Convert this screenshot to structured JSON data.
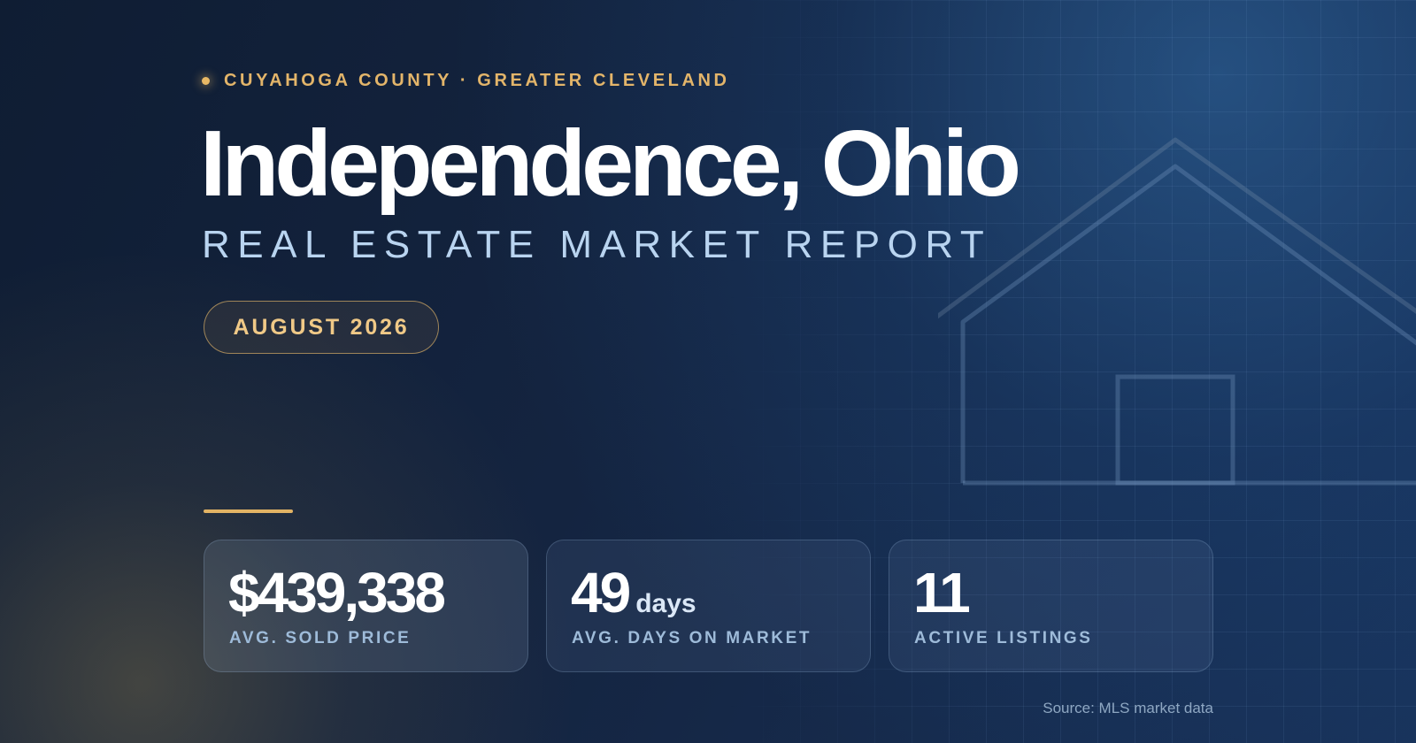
{
  "header": {
    "eyebrow": "CUYAHOGA COUNTY · GREATER CLEVELAND",
    "title": "Independence, Ohio",
    "subtitle": "REAL ESTATE MARKET REPORT",
    "period": "AUGUST 2026"
  },
  "stats": [
    {
      "value": "$439,338",
      "unit": "",
      "label": "AVG. SOLD PRICE"
    },
    {
      "value": "49",
      "unit": "days",
      "label": "AVG. DAYS ON MARKET"
    },
    {
      "value": "11",
      "unit": "",
      "label": "ACTIVE LISTINGS"
    }
  ],
  "footer": {
    "source": "Source: MLS market data"
  },
  "colors": {
    "accent": "#e3b56a",
    "background": "#142440",
    "subtitle": "#b9d4f0",
    "caption": "#9ebbd9"
  },
  "icons": {
    "bullet": "dot-icon",
    "illustration": "house-outline-icon"
  }
}
